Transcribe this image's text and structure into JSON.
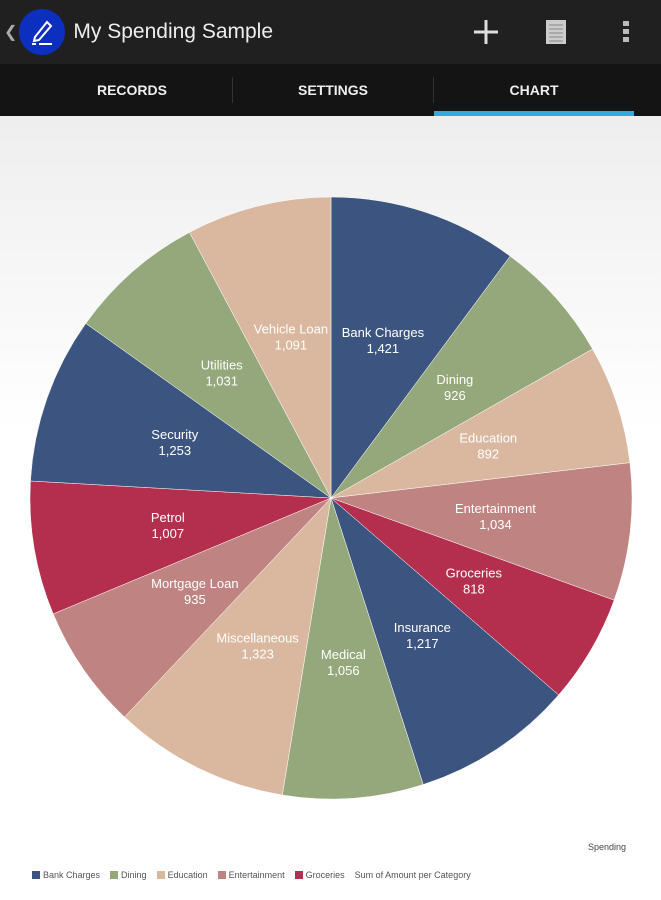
{
  "header": {
    "title": "My Spending Sample",
    "back_icon": "chevron-left-icon",
    "logo_icon": "pen-icon",
    "actions": [
      "plus-icon",
      "list-icon",
      "overflow-menu-icon"
    ]
  },
  "tabs": [
    {
      "label": "RECORDS"
    },
    {
      "label": "SETTINGS"
    },
    {
      "label": "CHART",
      "active": true
    }
  ],
  "chart_data": {
    "type": "pie",
    "title": "Spending",
    "subtitle": "Sum of Amount per Category",
    "categories": [
      "Bank Charges",
      "Dining",
      "Education",
      "Entertainment",
      "Groceries",
      "Insurance",
      "Medical",
      "Miscellaneous",
      "Mortgage Loan",
      "Petrol",
      "Security",
      "Utilities",
      "Vehicle Loan"
    ],
    "values": [
      1421,
      926,
      892,
      1034,
      818,
      1217,
      1056,
      1323,
      935,
      1007,
      1253,
      1031,
      1091
    ],
    "labels": [
      "1,421",
      "926",
      "892",
      "1,034",
      "818",
      "1,217",
      "1,056",
      "1,323",
      "935",
      "1,007",
      "1,253",
      "1,031",
      "1,091"
    ],
    "colors": [
      "#3c5580",
      "#94a87b",
      "#d9b89f",
      "#bf8482",
      "#b42f4e"
    ],
    "legend": [
      "Bank Charges",
      "Dining",
      "Education",
      "Entertainment",
      "Groceries"
    ],
    "legend_placement": "bottom-left"
  }
}
